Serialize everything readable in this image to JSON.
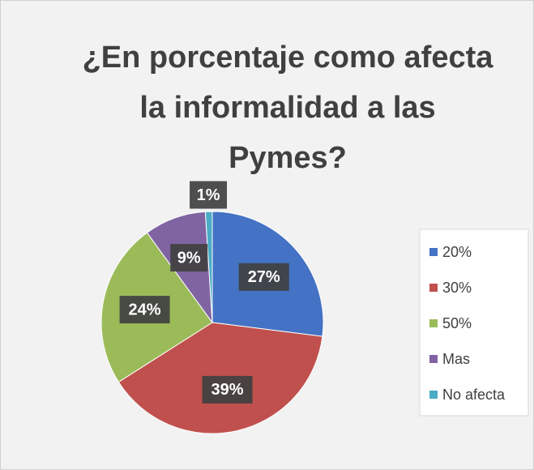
{
  "chart_data": {
    "type": "pie",
    "title": "¿En porcentaje como afecta la informalidad a las Pymes?",
    "categories": [
      "20%",
      "30%",
      "50%",
      "Mas",
      "No afecta"
    ],
    "values": [
      27,
      39,
      24,
      9,
      1
    ],
    "value_labels": [
      "27%",
      "39%",
      "24%",
      "9%",
      "1%"
    ],
    "colors": [
      "#4472c4",
      "#c0504d",
      "#9bbb59",
      "#8064a2",
      "#4bacc6"
    ],
    "legend": "right"
  }
}
